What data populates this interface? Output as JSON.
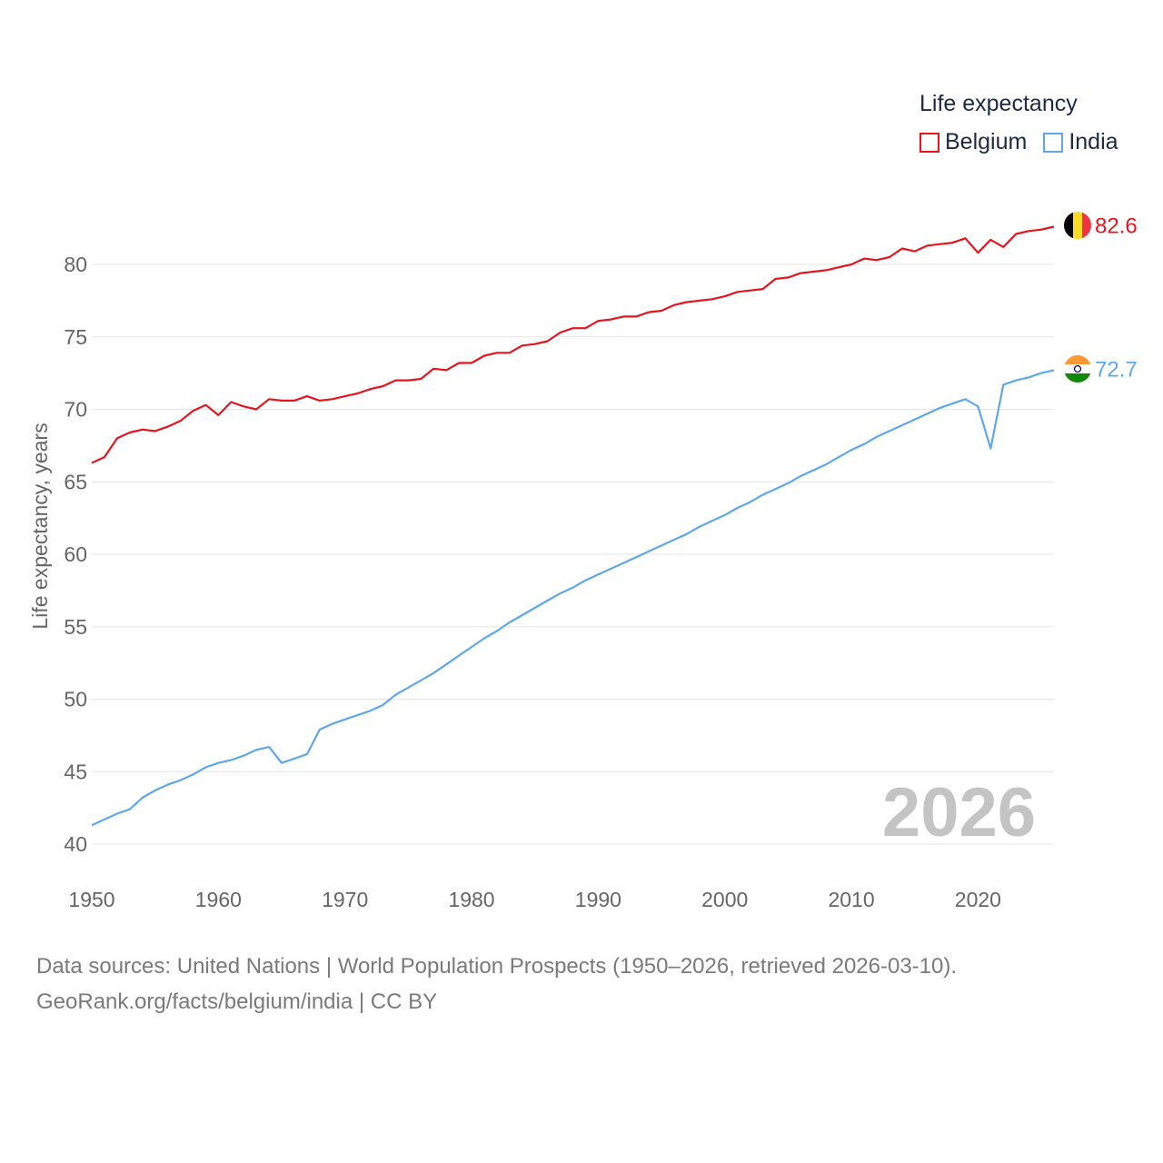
{
  "legend": {
    "title": "Life expectancy",
    "items": [
      {
        "label": "Belgium",
        "color": "#e3161e"
      },
      {
        "label": "India",
        "color": "#5fa8e8"
      }
    ]
  },
  "source": {
    "line1": "Data sources: United Nations | World Population Prospects (1950–2026, retrieved 2026-03-10).",
    "line2": "GeoRank.org/facts/belgium/india | CC BY"
  },
  "chart_data": {
    "type": "line",
    "title": "Life expectancy",
    "xlabel": "",
    "ylabel": "Life expectancy, years",
    "xlim": [
      1950,
      2026
    ],
    "ylim": [
      40,
      83
    ],
    "xticks": [
      1950,
      1960,
      1970,
      1980,
      1990,
      2000,
      2010,
      2020
    ],
    "yticks": [
      40,
      45,
      50,
      55,
      60,
      65,
      70,
      75,
      80
    ],
    "grid": true,
    "year_watermark": "2026",
    "x": [
      1950,
      1951,
      1952,
      1953,
      1954,
      1955,
      1956,
      1957,
      1958,
      1959,
      1960,
      1961,
      1962,
      1963,
      1964,
      1965,
      1966,
      1967,
      1968,
      1969,
      1970,
      1971,
      1972,
      1973,
      1974,
      1975,
      1976,
      1977,
      1978,
      1979,
      1980,
      1981,
      1982,
      1983,
      1984,
      1985,
      1986,
      1987,
      1988,
      1989,
      1990,
      1991,
      1992,
      1993,
      1994,
      1995,
      1996,
      1997,
      1998,
      1999,
      2000,
      2001,
      2002,
      2003,
      2004,
      2005,
      2006,
      2007,
      2008,
      2009,
      2010,
      2011,
      2012,
      2013,
      2014,
      2015,
      2016,
      2017,
      2018,
      2019,
      2020,
      2021,
      2022,
      2023,
      2024,
      2025,
      2026
    ],
    "series": [
      {
        "name": "Belgium",
        "color": "#e3161e",
        "end_label": "82.6",
        "values": [
          66.3,
          66.7,
          68.0,
          68.4,
          68.6,
          68.5,
          68.8,
          69.2,
          69.9,
          70.3,
          69.6,
          70.5,
          70.2,
          70.0,
          70.7,
          70.6,
          70.6,
          70.9,
          70.6,
          70.7,
          70.9,
          71.1,
          71.4,
          71.6,
          72.0,
          72.0,
          72.1,
          72.8,
          72.7,
          73.2,
          73.2,
          73.7,
          73.9,
          73.9,
          74.4,
          74.5,
          74.7,
          75.3,
          75.6,
          75.6,
          76.1,
          76.2,
          76.4,
          76.4,
          76.7,
          76.8,
          77.2,
          77.4,
          77.5,
          77.6,
          77.8,
          78.1,
          78.2,
          78.3,
          79.0,
          79.1,
          79.4,
          79.5,
          79.6,
          79.8,
          80.0,
          80.4,
          80.3,
          80.5,
          81.1,
          80.9,
          81.3,
          81.4,
          81.5,
          81.8,
          80.8,
          81.7,
          81.2,
          82.1,
          82.3,
          82.4,
          82.6
        ]
      },
      {
        "name": "India",
        "color": "#5fa8e8",
        "end_label": "72.7",
        "values": [
          41.3,
          41.7,
          42.1,
          42.4,
          43.2,
          43.7,
          44.1,
          44.4,
          44.8,
          45.3,
          45.6,
          45.8,
          46.1,
          46.5,
          46.7,
          45.6,
          45.9,
          46.2,
          47.9,
          48.3,
          48.6,
          48.9,
          49.2,
          49.6,
          50.3,
          50.8,
          51.3,
          51.8,
          52.4,
          53.0,
          53.6,
          54.2,
          54.7,
          55.3,
          55.8,
          56.3,
          56.8,
          57.3,
          57.7,
          58.2,
          58.6,
          59.0,
          59.4,
          59.8,
          60.2,
          60.6,
          61.0,
          61.4,
          61.9,
          62.3,
          62.7,
          63.2,
          63.6,
          64.1,
          64.5,
          64.9,
          65.4,
          65.8,
          66.2,
          66.7,
          67.2,
          67.6,
          68.1,
          68.5,
          68.9,
          69.3,
          69.7,
          70.1,
          70.4,
          70.7,
          70.2,
          67.3,
          71.7,
          72.0,
          72.2,
          72.5,
          72.7
        ]
      }
    ]
  }
}
